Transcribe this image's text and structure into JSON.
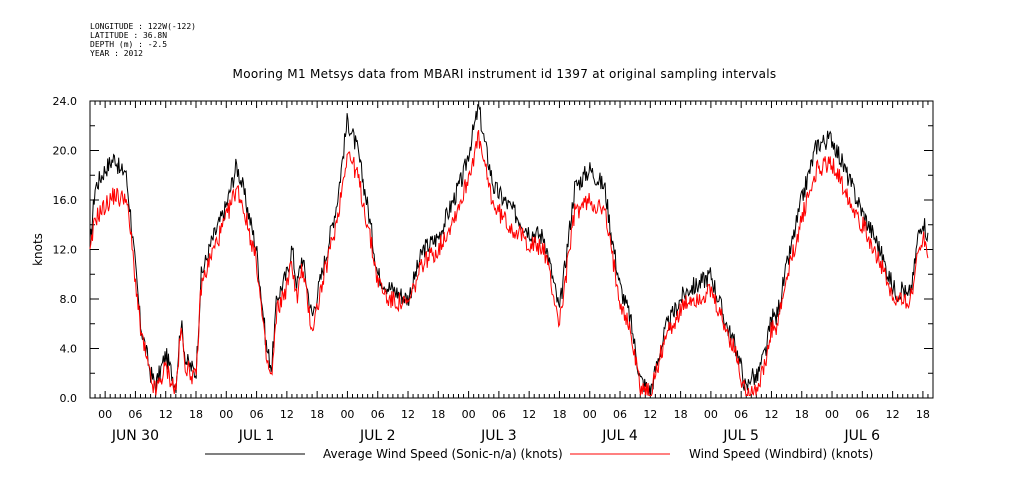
{
  "header": {
    "meta_lines": [
      "LONGITUDE : 122W(-122)",
      "LATITUDE : 36.8N",
      "DEPTH (m) : -2.5",
      "YEAR : 2012"
    ],
    "title": "Mooring M1 Metsys data from MBARI instrument id 1397 at original sampling intervals"
  },
  "chart_data": {
    "type": "line",
    "title": "Mooring M1 Metsys data from MBARI instrument id 1397 at original sampling intervals",
    "ylabel": "knots",
    "xlabel": "",
    "ylim": [
      0,
      24.0
    ],
    "yticks": [
      "0.0",
      "4.0",
      "8.0",
      "12.0",
      "16.0",
      "20.0",
      "24.0"
    ],
    "xlim_hours": [
      -3,
      164
    ],
    "hour_tick_labels": [
      "00",
      "06",
      "12",
      "18"
    ],
    "day_labels": [
      "JUN 30",
      "JUL  1",
      "JUL  2",
      "JUL  3",
      "JUL  4",
      "JUL  5",
      "JUL  6"
    ],
    "colors": {
      "sonic": "#000000",
      "windbird": "#ff0000"
    },
    "series": [
      {
        "name": "Average Wind Speed (Sonic-n/a) (knots)",
        "key": "sonic",
        "x": [
          -3,
          -2,
          0,
          2,
          3,
          4,
          5,
          6,
          7,
          8,
          9,
          10,
          12,
          14,
          15,
          16,
          18,
          19,
          21,
          24,
          26,
          27,
          30,
          32,
          33,
          34,
          36,
          37,
          38,
          39,
          41,
          44,
          46,
          48,
          50,
          52,
          54,
          56,
          60,
          63,
          66,
          69,
          71,
          74,
          75,
          77,
          80,
          84,
          87,
          90,
          93,
          96,
          99,
          100,
          102,
          104,
          106,
          108,
          111,
          114,
          116,
          117,
          120,
          123,
          125,
          126,
          127,
          128,
          129,
          131,
          132,
          133,
          135,
          138,
          141,
          144,
          147,
          150,
          153,
          156,
          157,
          158,
          159,
          160,
          161,
          162,
          163
        ],
        "values": [
          12.2,
          17.0,
          18.5,
          19.5,
          18.2,
          18.5,
          15.0,
          10.5,
          6.0,
          4.0,
          2.0,
          1.0,
          3.5,
          1.0,
          6.2,
          3.0,
          2.0,
          9.8,
          12.5,
          15.5,
          18.8,
          17.5,
          12.0,
          4.0,
          2.5,
          8.0,
          10.0,
          12.2,
          9.0,
          11.5,
          6.5,
          12.0,
          16.0,
          22.5,
          20.0,
          15.5,
          10.0,
          9.0,
          8.0,
          12.0,
          13.0,
          16.0,
          18.0,
          23.5,
          21.0,
          17.0,
          15.5,
          13.5,
          13.0,
          7.0,
          17.0,
          18.5,
          17.0,
          14.0,
          9.0,
          6.5,
          1.5,
          0.5,
          5.5,
          8.0,
          9.0,
          9.0,
          10.0,
          6.0,
          4.0,
          2.5,
          0.5,
          2.0,
          1.5,
          4.0,
          6.5,
          6.5,
          10.5,
          16.0,
          20.5,
          21.0,
          18.0,
          15.0,
          12.5,
          9.0,
          8.5,
          9.0,
          8.0,
          9.5,
          13.0,
          14.5,
          13.0
        ]
      },
      {
        "name": "Wind Speed (Windbird) (knots)",
        "key": "windbird",
        "x": [
          -3,
          -2,
          0,
          2,
          3,
          4,
          5,
          6,
          7,
          8,
          9,
          10,
          12,
          14,
          15,
          16,
          18,
          19,
          21,
          24,
          26,
          27,
          30,
          32,
          33,
          34,
          36,
          37,
          38,
          39,
          41,
          44,
          46,
          48,
          50,
          52,
          54,
          56,
          60,
          63,
          66,
          69,
          71,
          74,
          75,
          77,
          80,
          84,
          87,
          90,
          93,
          96,
          99,
          100,
          102,
          104,
          106,
          108,
          111,
          114,
          116,
          117,
          120,
          123,
          125,
          126,
          127,
          128,
          129,
          131,
          132,
          133,
          135,
          138,
          141,
          144,
          147,
          150,
          153,
          156,
          157,
          158,
          159,
          160,
          161,
          162,
          163
        ],
        "values": [
          11.5,
          14.5,
          15.5,
          16.5,
          16.0,
          16.5,
          13.5,
          9.5,
          5.5,
          3.5,
          1.5,
          0.5,
          2.5,
          0.5,
          5.5,
          2.5,
          1.5,
          9.0,
          11.5,
          14.5,
          17.0,
          16.0,
          11.0,
          3.0,
          1.5,
          7.0,
          9.0,
          11.0,
          8.0,
          10.5,
          5.5,
          11.0,
          14.5,
          20.0,
          18.0,
          14.0,
          9.5,
          8.0,
          7.5,
          11.0,
          12.0,
          14.5,
          16.5,
          21.0,
          19.0,
          15.5,
          14.0,
          12.5,
          12.0,
          6.0,
          15.0,
          16.0,
          15.0,
          12.5,
          8.0,
          5.5,
          1.0,
          0.3,
          5.0,
          7.0,
          8.0,
          8.0,
          8.5,
          5.5,
          3.5,
          1.5,
          0.3,
          1.0,
          0.5,
          3.0,
          5.5,
          5.5,
          9.5,
          14.5,
          18.5,
          19.0,
          16.5,
          14.0,
          11.5,
          8.0,
          7.5,
          8.5,
          7.5,
          8.5,
          12.0,
          13.0,
          12.0
        ]
      }
    ]
  }
}
